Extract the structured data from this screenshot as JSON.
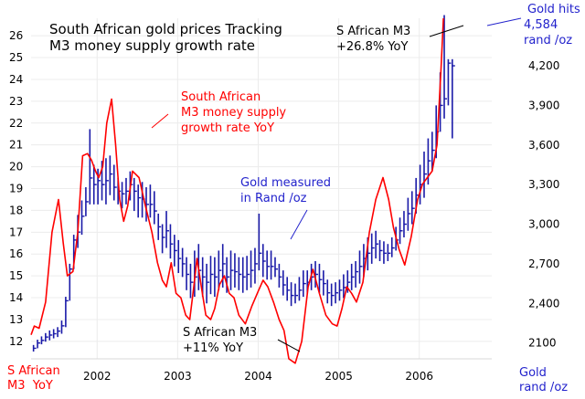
{
  "chart_data": {
    "type": "line",
    "title": "South African gold prices Tracking M3 money supply growth rate",
    "title_lines": [
      "South African gold prices Tracking",
      "M3 money supply growth rate"
    ],
    "left_axis_label": [
      "S African",
      "M3  YoY"
    ],
    "right_axis_label": [
      "Gold",
      "rand /oz"
    ],
    "left_ticks": [
      12,
      13,
      14,
      15,
      16,
      17,
      18,
      19,
      20,
      21,
      22,
      23,
      24,
      25,
      26
    ],
    "left_tick_labels": [
      "12",
      "13",
      "14",
      "15",
      "16",
      "17",
      "18",
      "19",
      "20",
      "21",
      "22",
      "23",
      "24",
      "25",
      "26"
    ],
    "ylim_left": [
      11.2,
      26.8
    ],
    "right_ticks": [
      2100,
      2400,
      2700,
      3000,
      3300,
      3600,
      3900,
      4200
    ],
    "right_tick_labels": [
      "2100",
      "2,400",
      "2,700",
      "3,000",
      "3,300",
      "3,600",
      "3,900",
      "4,200"
    ],
    "ylim_right": [
      1980,
      4560
    ],
    "x_ticks": [
      2002,
      2003,
      2004,
      2005,
      2006
    ],
    "x_tick_labels": [
      "2002",
      "2003",
      "2004",
      "2005",
      "2006"
    ],
    "xlim": [
      2001.18,
      2006.9
    ],
    "colors": {
      "m3": "#ff0000",
      "gold": "#1a1aa8",
      "text_red": "#ff0000",
      "text_blue": "#2222cc",
      "text_black": "#000000"
    },
    "annotations": {
      "m3_label": [
        "South African",
        "M3 money supply",
        "growth rate YoY"
      ],
      "gold_label": [
        "Gold measured",
        "in Rand /oz"
      ],
      "m3_high": [
        "S African M3",
        "+26.8% YoY"
      ],
      "m3_low": [
        "S African M3",
        "+11% YoY"
      ],
      "gold_high": [
        "Gold hits",
        "4,584",
        "rand /oz"
      ]
    },
    "series": [
      {
        "name": "South African M3 money supply growth rate YoY",
        "axis": "left",
        "x": [
          2001.18,
          2001.22,
          2001.28,
          2001.36,
          2001.44,
          2001.52,
          2001.58,
          2001.63,
          2001.7,
          2001.76,
          2001.82,
          2001.88,
          2001.93,
          2001.98,
          2002.02,
          2002.07,
          2002.12,
          2002.18,
          2002.23,
          2002.28,
          2002.33,
          2002.38,
          2002.44,
          2002.52,
          2002.6,
          2002.68,
          2002.75,
          2002.81,
          2002.86,
          2002.92,
          2002.98,
          2003.04,
          2003.1,
          2003.15,
          2003.2,
          2003.24,
          2003.29,
          2003.35,
          2003.41,
          2003.46,
          2003.52,
          2003.58,
          2003.64,
          2003.7,
          2003.76,
          2003.84,
          2003.92,
          2004.0,
          2004.06,
          2004.12,
          2004.19,
          2004.26,
          2004.32,
          2004.38,
          2004.46,
          2004.54,
          2004.62,
          2004.68,
          2004.76,
          2004.84,
          2004.92,
          2004.98,
          2005.04,
          2005.1,
          2005.16,
          2005.22,
          2005.3,
          2005.38,
          2005.46,
          2005.55,
          2005.62,
          2005.68,
          2005.75,
          2005.82,
          2005.9,
          2005.98,
          2006.04,
          2006.1,
          2006.16,
          2006.22,
          2006.27,
          2006.3
        ],
        "values": [
          12.3,
          12.7,
          12.6,
          13.8,
          17.0,
          18.5,
          16.5,
          15.0,
          15.2,
          17.0,
          20.5,
          20.6,
          20.3,
          19.8,
          19.5,
          20.0,
          22.0,
          23.1,
          21.0,
          18.5,
          17.5,
          18.2,
          19.8,
          19.5,
          18.2,
          17.0,
          15.6,
          14.8,
          14.5,
          15.6,
          14.2,
          14.0,
          13.2,
          13.0,
          14.5,
          15.8,
          14.6,
          13.2,
          13.0,
          13.5,
          14.6,
          15.0,
          14.2,
          14.0,
          13.2,
          12.8,
          13.6,
          14.3,
          14.8,
          14.5,
          13.8,
          13.0,
          12.5,
          11.2,
          11.0,
          12.0,
          14.5,
          15.3,
          14.2,
          13.2,
          12.8,
          12.7,
          13.5,
          14.5,
          14.2,
          13.8,
          14.7,
          17.0,
          18.5,
          19.5,
          18.5,
          17.2,
          16.2,
          15.5,
          16.8,
          18.5,
          19.2,
          19.5,
          19.8,
          21.0,
          24.5,
          26.8
        ]
      },
      {
        "name": "Gold measured in Rand /oz",
        "axis": "right",
        "bars": [
          [
            2001.21,
            2035,
            2085,
            2060
          ],
          [
            2001.26,
            2060,
            2125,
            2100
          ],
          [
            2001.31,
            2090,
            2150,
            2120
          ],
          [
            2001.36,
            2110,
            2175,
            2145
          ],
          [
            2001.41,
            2120,
            2195,
            2160
          ],
          [
            2001.46,
            2135,
            2205,
            2170
          ],
          [
            2001.51,
            2145,
            2220,
            2190
          ],
          [
            2001.56,
            2170,
            2270,
            2230
          ],
          [
            2001.61,
            2220,
            2450,
            2420
          ],
          [
            2001.66,
            2420,
            2700,
            2660
          ],
          [
            2001.71,
            2660,
            2920,
            2880
          ],
          [
            2001.76,
            2820,
            3070,
            2940
          ],
          [
            2001.81,
            2920,
            3180,
            3060
          ],
          [
            2001.86,
            3060,
            3280,
            3170
          ],
          [
            2001.91,
            3150,
            3720,
            3350
          ],
          [
            2001.96,
            3150,
            3450,
            3300
          ],
          [
            2002.01,
            3150,
            3420,
            3330
          ],
          [
            2002.06,
            3180,
            3480,
            3300
          ],
          [
            2002.11,
            3150,
            3500,
            3330
          ],
          [
            2002.16,
            3220,
            3520,
            3380
          ],
          [
            2002.21,
            3180,
            3450,
            3280
          ],
          [
            2002.26,
            3150,
            3350,
            3250
          ],
          [
            2002.31,
            3120,
            3320,
            3230
          ],
          [
            2002.36,
            3150,
            3350,
            3250
          ],
          [
            2002.41,
            3180,
            3400,
            3300
          ],
          [
            2002.46,
            3100,
            3350,
            3250
          ],
          [
            2002.51,
            3050,
            3300,
            3200
          ],
          [
            2002.56,
            3050,
            3320,
            3190
          ],
          [
            2002.61,
            3020,
            3280,
            3150
          ],
          [
            2002.66,
            3050,
            3300,
            3150
          ],
          [
            2002.71,
            3000,
            3250,
            3100
          ],
          [
            2002.76,
            2880,
            3080,
            2980
          ],
          [
            2002.81,
            2780,
            3000,
            2900
          ],
          [
            2002.86,
            2820,
            3100,
            2950
          ],
          [
            2002.91,
            2740,
            3000,
            2850
          ],
          [
            2002.96,
            2680,
            2920,
            2800
          ],
          [
            2003.01,
            2630,
            2880,
            2740
          ],
          [
            2003.06,
            2600,
            2820,
            2700
          ],
          [
            2003.11,
            2500,
            2750,
            2620
          ],
          [
            2003.16,
            2440,
            2700,
            2560
          ],
          [
            2003.21,
            2450,
            2800,
            2600
          ],
          [
            2003.26,
            2500,
            2850,
            2650
          ],
          [
            2003.31,
            2450,
            2750,
            2600
          ],
          [
            2003.36,
            2400,
            2700,
            2560
          ],
          [
            2003.41,
            2470,
            2760,
            2620
          ],
          [
            2003.46,
            2450,
            2750,
            2600
          ],
          [
            2003.51,
            2500,
            2800,
            2650
          ],
          [
            2003.56,
            2520,
            2850,
            2700
          ],
          [
            2003.61,
            2480,
            2750,
            2600
          ],
          [
            2003.66,
            2500,
            2800,
            2650
          ],
          [
            2003.71,
            2520,
            2780,
            2640
          ],
          [
            2003.76,
            2500,
            2750,
            2620
          ],
          [
            2003.81,
            2480,
            2750,
            2600
          ],
          [
            2003.86,
            2500,
            2760,
            2620
          ],
          [
            2003.91,
            2520,
            2800,
            2650
          ],
          [
            2003.96,
            2550,
            2820,
            2700
          ],
          [
            2004.01,
            2650,
            3080,
            2780
          ],
          [
            2004.06,
            2600,
            2850,
            2720
          ],
          [
            2004.11,
            2580,
            2800,
            2680
          ],
          [
            2004.16,
            2580,
            2800,
            2680
          ],
          [
            2004.21,
            2600,
            2750,
            2660
          ],
          [
            2004.26,
            2520,
            2700,
            2600
          ],
          [
            2004.31,
            2460,
            2650,
            2540
          ],
          [
            2004.36,
            2420,
            2600,
            2500
          ],
          [
            2004.41,
            2380,
            2560,
            2460
          ],
          [
            2004.46,
            2400,
            2550,
            2460
          ],
          [
            2004.51,
            2420,
            2600,
            2500
          ],
          [
            2004.56,
            2450,
            2650,
            2550
          ],
          [
            2004.61,
            2470,
            2650,
            2560
          ],
          [
            2004.66,
            2500,
            2700,
            2600
          ],
          [
            2004.71,
            2520,
            2720,
            2620
          ],
          [
            2004.76,
            2480,
            2700,
            2580
          ],
          [
            2004.81,
            2460,
            2650,
            2550
          ],
          [
            2004.86,
            2400,
            2580,
            2480
          ],
          [
            2004.91,
            2380,
            2550,
            2460
          ],
          [
            2004.96,
            2400,
            2560,
            2480
          ],
          [
            2005.01,
            2420,
            2580,
            2500
          ],
          [
            2005.06,
            2440,
            2620,
            2520
          ],
          [
            2005.11,
            2480,
            2650,
            2560
          ],
          [
            2005.16,
            2500,
            2700,
            2600
          ],
          [
            2005.21,
            2520,
            2720,
            2640
          ],
          [
            2005.26,
            2550,
            2800,
            2680
          ],
          [
            2005.31,
            2600,
            2850,
            2740
          ],
          [
            2005.36,
            2650,
            2900,
            2780
          ],
          [
            2005.41,
            2700,
            2930,
            2820
          ],
          [
            2005.46,
            2740,
            2950,
            2850
          ],
          [
            2005.51,
            2720,
            2880,
            2800
          ],
          [
            2005.56,
            2700,
            2870,
            2780
          ],
          [
            2005.61,
            2720,
            2850,
            2780
          ],
          [
            2005.66,
            2750,
            2900,
            2820
          ],
          [
            2005.71,
            2800,
            2980,
            2880
          ],
          [
            2005.76,
            2850,
            3050,
            2950
          ],
          [
            2005.81,
            2900,
            3100,
            3000
          ],
          [
            2005.86,
            2950,
            3200,
            3080
          ],
          [
            2005.91,
            3000,
            3250,
            3120
          ],
          [
            2005.96,
            3080,
            3350,
            3220
          ],
          [
            2006.01,
            3150,
            3450,
            3300
          ],
          [
            2006.06,
            3200,
            3550,
            3380
          ],
          [
            2006.11,
            3300,
            3650,
            3480
          ],
          [
            2006.16,
            3400,
            3700,
            3560
          ],
          [
            2006.21,
            3500,
            3900,
            3700
          ],
          [
            2006.26,
            3700,
            4150,
            3900
          ],
          [
            2006.31,
            3800,
            4584,
            3950
          ],
          [
            2006.36,
            3900,
            4250,
            4220
          ],
          [
            2006.41,
            3650,
            4250,
            4200
          ]
        ]
      }
    ]
  }
}
